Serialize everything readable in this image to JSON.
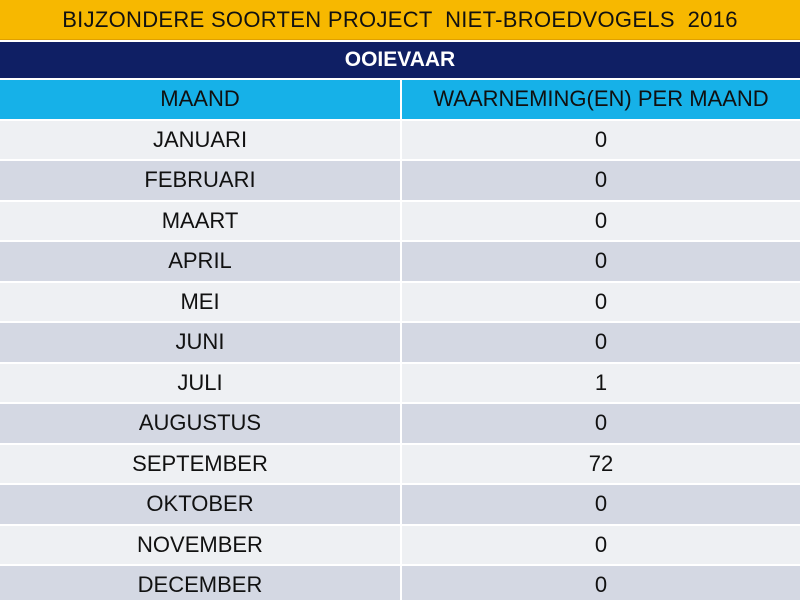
{
  "title": "BIJZONDERE SOORTEN PROJECT  NIET-BROEDVOGELS  2016",
  "species": "OOIEVAAR",
  "table": {
    "headers": {
      "month": "MAAND",
      "count": "WAARNEMING(EN) PER MAAND"
    },
    "rows": [
      {
        "month": "JANUARI",
        "count": "0"
      },
      {
        "month": "FEBRUARI",
        "count": "0"
      },
      {
        "month": "MAART",
        "count": "0"
      },
      {
        "month": "APRIL",
        "count": "0"
      },
      {
        "month": "MEI",
        "count": "0"
      },
      {
        "month": "JUNI",
        "count": "0"
      },
      {
        "month": "JULI",
        "count": "1"
      },
      {
        "month": "AUGUSTUS",
        "count": "0"
      },
      {
        "month": "SEPTEMBER",
        "count": "72"
      },
      {
        "month": "OKTOBER",
        "count": "0"
      },
      {
        "month": "NOVEMBER",
        "count": "0"
      },
      {
        "month": "DECEMBER",
        "count": "0"
      }
    ]
  },
  "colors": {
    "title_background": "#f7b800",
    "species_background": "#0f1f64",
    "header_background": "#16b1e8",
    "row_light": "#eef0f3",
    "row_dark": "#d4d8e3"
  }
}
